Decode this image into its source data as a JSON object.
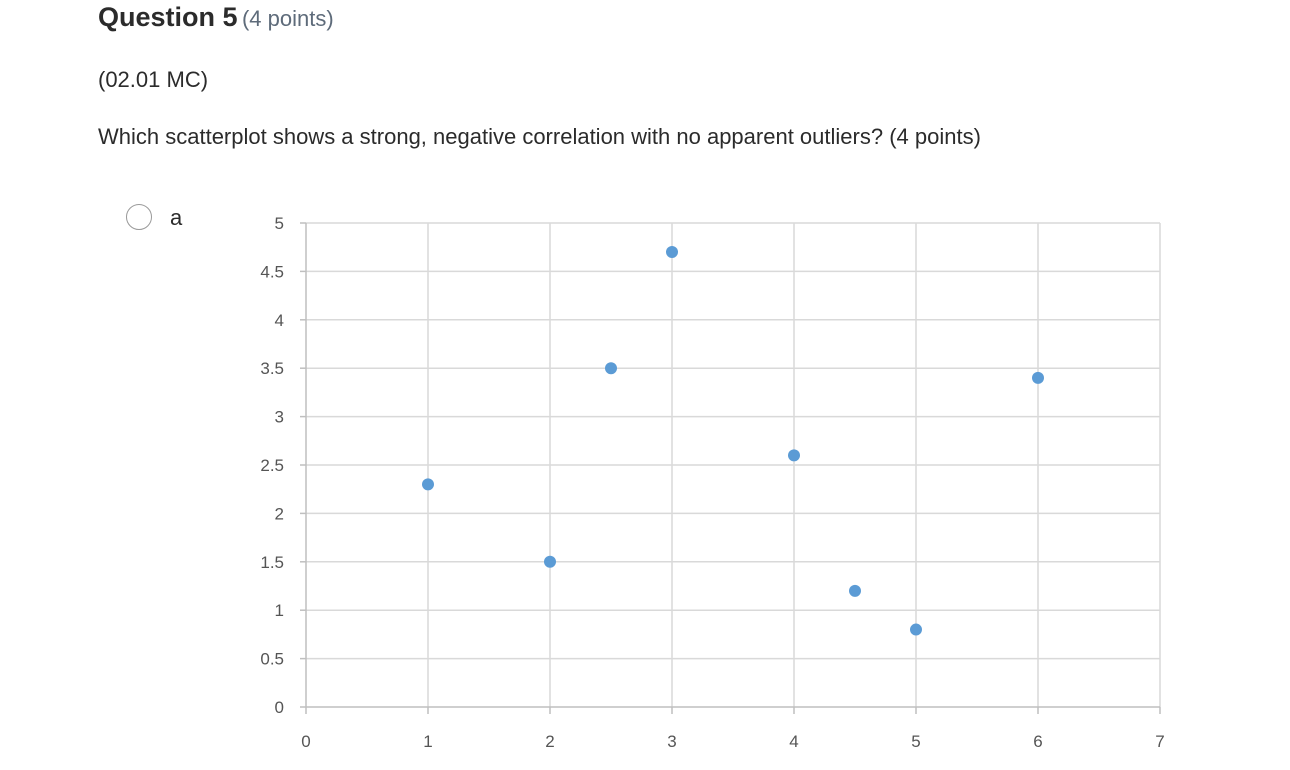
{
  "question": {
    "title": "Question 5",
    "points": "(4 points)",
    "code": "(02.01 MC)",
    "prompt": "Which scatterplot shows a strong, negative correlation with no apparent outliers? (4 points)"
  },
  "options": [
    {
      "label": "a",
      "selected": false
    }
  ],
  "colors": {
    "point": "#5b9bd5",
    "grid": "#d9d9d9",
    "axis": "#bfbfbf"
  },
  "chart_data": {
    "type": "scatter",
    "title": "",
    "xlabel": "",
    "ylabel": "",
    "xlim": [
      0,
      7
    ],
    "ylim": [
      0,
      5
    ],
    "x_ticks": [
      "0",
      "1",
      "2",
      "3",
      "4",
      "5",
      "6",
      "7"
    ],
    "y_ticks": [
      "0",
      "0.5",
      "1",
      "1.5",
      "2",
      "2.5",
      "3",
      "3.5",
      "4",
      "4.5",
      "5"
    ],
    "grid": true,
    "legend": "none",
    "series": [
      {
        "x": [
          1,
          2,
          2.5,
          3,
          4,
          4.5,
          5,
          6
        ],
        "y": [
          2.3,
          1.5,
          3.5,
          4.7,
          2.6,
          1.2,
          0.8,
          3.4
        ]
      }
    ]
  }
}
